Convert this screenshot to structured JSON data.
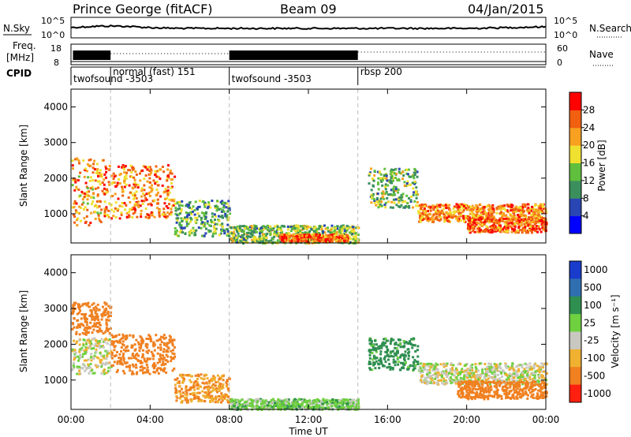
{
  "header": {
    "station": "Prince George (fitACF)",
    "beam": "Beam 09",
    "date": "04/Jan/2015"
  },
  "strip_labels": {
    "nsky": "N.Sky",
    "nsky_ticks": [
      "10^5",
      "10^0"
    ],
    "nsearch": "N.Search",
    "nsearch_ticks": [
      "10^5",
      "10^0"
    ],
    "freq_a": "Freq.",
    "freq_b": "[MHz]",
    "freq_ticks": [
      "18",
      "8"
    ],
    "nave": "Nave",
    "nave_ticks": [
      "60",
      "0"
    ],
    "cpid": "CPID"
  },
  "cpid_segments": [
    {
      "label": "twofsound -3503",
      "start_h": 0.0
    },
    {
      "label": "normal (fast) 151",
      "start_h": 2.0
    },
    {
      "label": "twofsound -3503",
      "start_h": 8.0
    },
    {
      "label": "rbsp 200",
      "start_h": 14.5
    }
  ],
  "chart_data": [
    {
      "type": "heatmap",
      "title": "",
      "xlabel": "Time UT",
      "ylabel": "Slant Range [km]",
      "colorbar_label": "Power [dB]",
      "x_ticks": [
        "00:00",
        "04:00",
        "08:00",
        "12:00",
        "16:00",
        "20:00",
        "00:00"
      ],
      "xlim_hours": [
        0,
        24
      ],
      "ylim_km": [
        180,
        4500
      ],
      "y_ticks": [
        1000,
        2000,
        3000,
        4000
      ],
      "colorbar_ticks": [
        4,
        8,
        12,
        16,
        20,
        24,
        28
      ],
      "colorbar_range": [
        0,
        32
      ],
      "colors": [
        "#0000ff",
        "#2a46b4",
        "#3b8f5c",
        "#60bf3c",
        "#f0e030",
        "#f8a020",
        "#f06010",
        "#ff0000"
      ],
      "cpid_change_hours": [
        2.0,
        8.0,
        14.5
      ],
      "features": [
        {
          "t_start": 0.0,
          "t_end": 1.6,
          "range_km": [
            700,
            2600
          ],
          "level_db": 22
        },
        {
          "t_start": 1.6,
          "t_end": 5.2,
          "range_km": [
            900,
            2400
          ],
          "level_db": 24
        },
        {
          "t_start": 5.2,
          "t_end": 8.0,
          "range_km": [
            400,
            1400
          ],
          "level_db": 12
        },
        {
          "t_start": 8.0,
          "t_end": 14.5,
          "range_km": [
            200,
            700
          ],
          "level_db": 14
        },
        {
          "t_start": 10.5,
          "t_end": 14.0,
          "range_km": [
            250,
            450
          ],
          "level_db": 26
        },
        {
          "t_start": 15.0,
          "t_end": 17.5,
          "range_km": [
            1200,
            2300
          ],
          "level_db": 14
        },
        {
          "t_start": 17.5,
          "t_end": 24.0,
          "range_km": [
            800,
            1300
          ],
          "level_db": 24
        },
        {
          "t_start": 20.0,
          "t_end": 24.0,
          "range_km": [
            500,
            900
          ],
          "level_db": 26
        }
      ]
    },
    {
      "type": "heatmap",
      "title": "",
      "xlabel": "Time UT",
      "ylabel": "Slant Range [km]",
      "colorbar_label": "Velocity [m s⁻¹]",
      "x_ticks": [
        "00:00",
        "04:00",
        "08:00",
        "12:00",
        "16:00",
        "20:00",
        "00:00"
      ],
      "xlim_hours": [
        0,
        24
      ],
      "ylim_km": [
        180,
        4500
      ],
      "y_ticks": [
        1000,
        2000,
        3000,
        4000
      ],
      "colorbar_ticks": [
        "1000",
        "500",
        "100",
        "25",
        "-25",
        "-100",
        "-500",
        "-1000"
      ],
      "colors": [
        "#1a3ccc",
        "#2f6fb0",
        "#2f8f50",
        "#6fd040",
        "#c8c8c0",
        "#f0b030",
        "#f08020",
        "#ff2010"
      ],
      "cpid_change_hours": [
        2.0,
        8.0,
        14.5
      ],
      "features": [
        {
          "t_start": 0.0,
          "t_end": 2.0,
          "range_km": [
            1200,
            2200
          ],
          "velocity": 0
        },
        {
          "t_start": 0.0,
          "t_end": 2.0,
          "range_km": [
            2300,
            3200
          ],
          "velocity": -200
        },
        {
          "t_start": 2.0,
          "t_end": 5.2,
          "range_km": [
            1200,
            2300
          ],
          "velocity": -300
        },
        {
          "t_start": 5.2,
          "t_end": 8.0,
          "range_km": [
            400,
            1200
          ],
          "velocity": -100
        },
        {
          "t_start": 8.0,
          "t_end": 14.5,
          "range_km": [
            200,
            500
          ],
          "velocity": 60
        },
        {
          "t_start": 15.0,
          "t_end": 17.5,
          "range_km": [
            1300,
            2200
          ],
          "velocity": 150
        },
        {
          "t_start": 17.5,
          "t_end": 24.0,
          "range_km": [
            900,
            1500
          ],
          "velocity": 0
        },
        {
          "t_start": 19.5,
          "t_end": 24.0,
          "range_km": [
            500,
            1000
          ],
          "velocity": -300
        }
      ]
    }
  ]
}
